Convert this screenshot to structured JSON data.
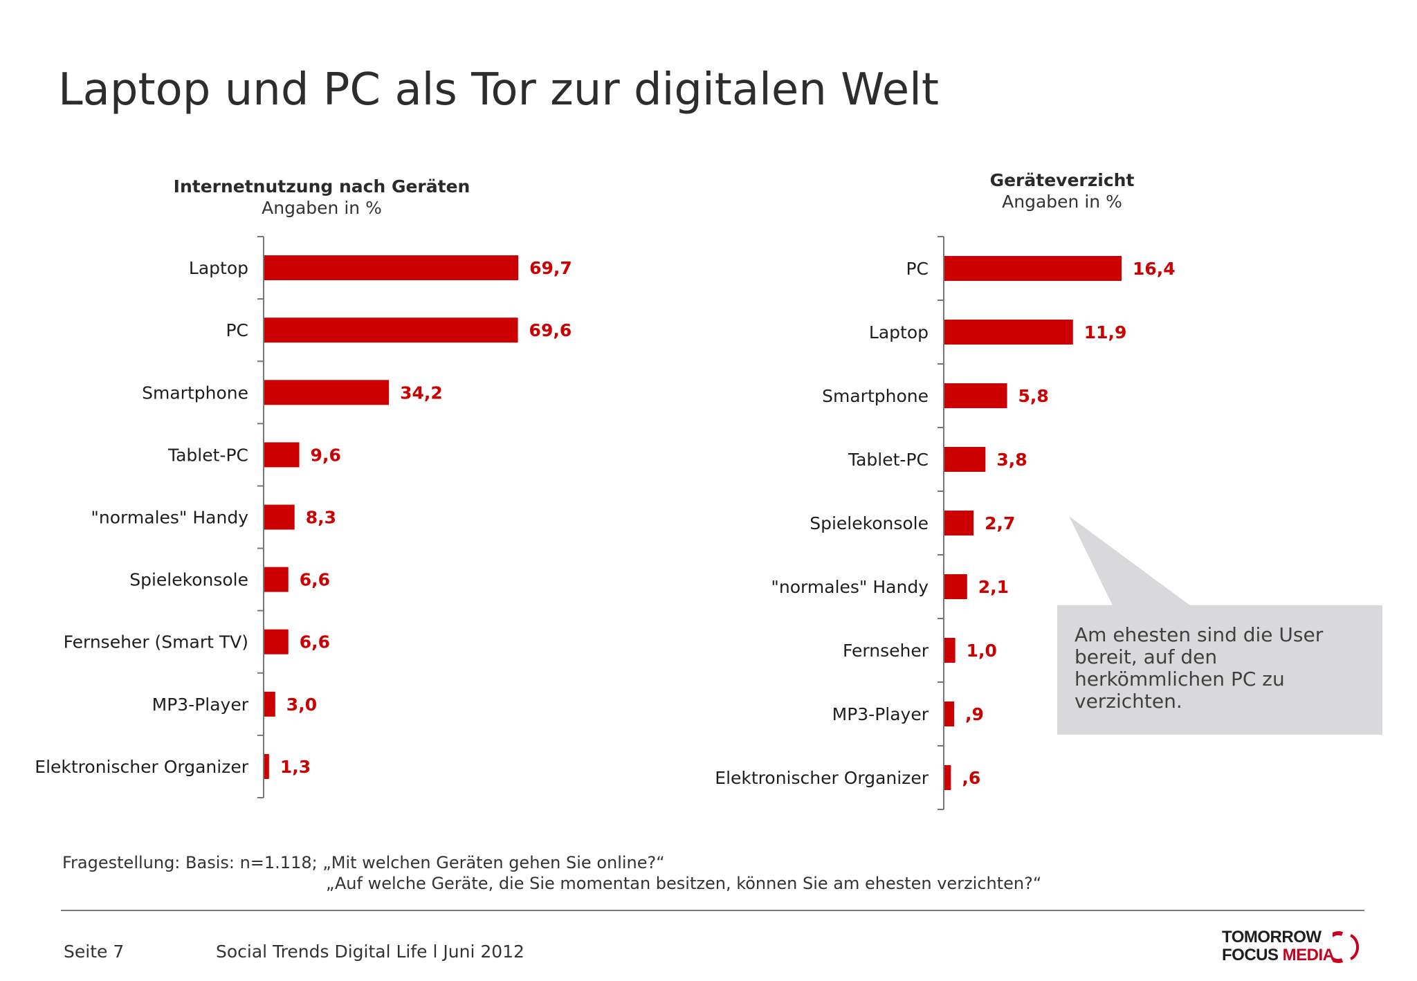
{
  "title": "Laptop und PC als Tor zur digitalen Welt",
  "colors": {
    "bar": "#cc0000",
    "value_label": "#cc0000",
    "axis": "#777777",
    "callout_bg": "#d9d9db"
  },
  "chart_data": [
    {
      "type": "bar",
      "orientation": "horizontal",
      "title": "Internetnutzung nach Geräten",
      "subtitle": "Angaben in %",
      "categories": [
        "Laptop",
        "PC",
        "Smartphone",
        "Tablet-PC",
        "\"normales\" Handy",
        "Spielekonsole",
        "Fernseher (Smart TV)",
        "MP3-Player",
        "Elektronischer Organizer"
      ],
      "values": [
        69.7,
        69.6,
        34.2,
        9.6,
        8.3,
        6.6,
        6.6,
        3.0,
        1.3
      ],
      "value_labels": [
        "69,7",
        "69,6",
        "34,2",
        "9,6",
        "8,3",
        "6,6",
        "6,6",
        "3,0",
        "1,3"
      ],
      "xlim": [
        0,
        75
      ],
      "grid": false,
      "legend": "none"
    },
    {
      "type": "bar",
      "orientation": "horizontal",
      "title": "Geräteverzicht",
      "subtitle": "Angaben in %",
      "categories": [
        "PC",
        "Laptop",
        "Smartphone",
        "Tablet-PC",
        "Spielekonsole",
        "\"normales\" Handy",
        "Fernseher",
        "MP3-Player",
        "Elektronischer Organizer"
      ],
      "values": [
        16.4,
        11.9,
        5.8,
        3.8,
        2.7,
        2.1,
        1.0,
        0.9,
        0.6
      ],
      "value_labels": [
        "16,4",
        "11,9",
        "5,8",
        "3,8",
        "2,7",
        "2,1",
        "1,0",
        ",9",
        ",6"
      ],
      "xlim": [
        0,
        18
      ],
      "grid": false,
      "legend": "none"
    }
  ],
  "callout": {
    "text": "Am ehesten sind die User bereit, auf den herkömmlichen PC zu verzichten."
  },
  "footnote": {
    "line1": "Fragestellung: Basis: n=1.118; „Mit welchen Geräten gehen Sie online?“",
    "line2": "„Auf welche Geräte, die Sie momentan besitzen, können Sie am ehesten verzichten?“"
  },
  "footer": {
    "page": "Seite  7",
    "series": "Social Trends Digital Life l Juni 2012",
    "logo_line1": "TOMORROW",
    "logo_line2a": "FOCUS",
    "logo_line2b": "MEDIA"
  }
}
